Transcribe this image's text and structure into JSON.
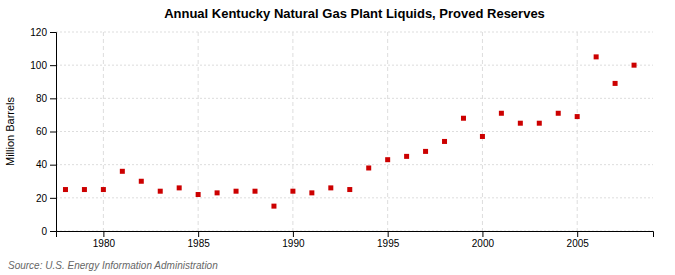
{
  "chart_data": {
    "type": "scatter",
    "title": "Annual Kentucky Natural Gas Plant Liquids, Proved Reserves",
    "y_label": "Million Barrels",
    "annotations": [
      "Source: U.S. Energy Information Administration"
    ],
    "x": [
      1978,
      1979,
      1980,
      1981,
      1982,
      1983,
      1984,
      1985,
      1986,
      1987,
      1988,
      1989,
      1990,
      1991,
      1992,
      1993,
      1994,
      1995,
      1996,
      1997,
      1998,
      1999,
      2000,
      2001,
      2002,
      2003,
      2004,
      2005,
      2006,
      2007,
      2008
    ],
    "values": [
      25,
      25,
      25,
      36,
      30,
      24,
      26,
      22,
      23,
      24,
      24,
      15,
      24,
      23,
      26,
      25,
      38,
      43,
      45,
      48,
      54,
      68,
      57,
      71,
      65,
      65,
      71,
      69,
      105,
      89,
      100
    ],
    "color": "#cc0000",
    "marker": "square",
    "xlim": [
      1977.5,
      2009
    ],
    "xticks": [
      1980,
      1985,
      1990,
      1995,
      2000,
      2005
    ],
    "ylim": [
      0,
      120
    ],
    "yticks": [
      0,
      20,
      40,
      60,
      80,
      100,
      120
    ],
    "grid": true
  }
}
